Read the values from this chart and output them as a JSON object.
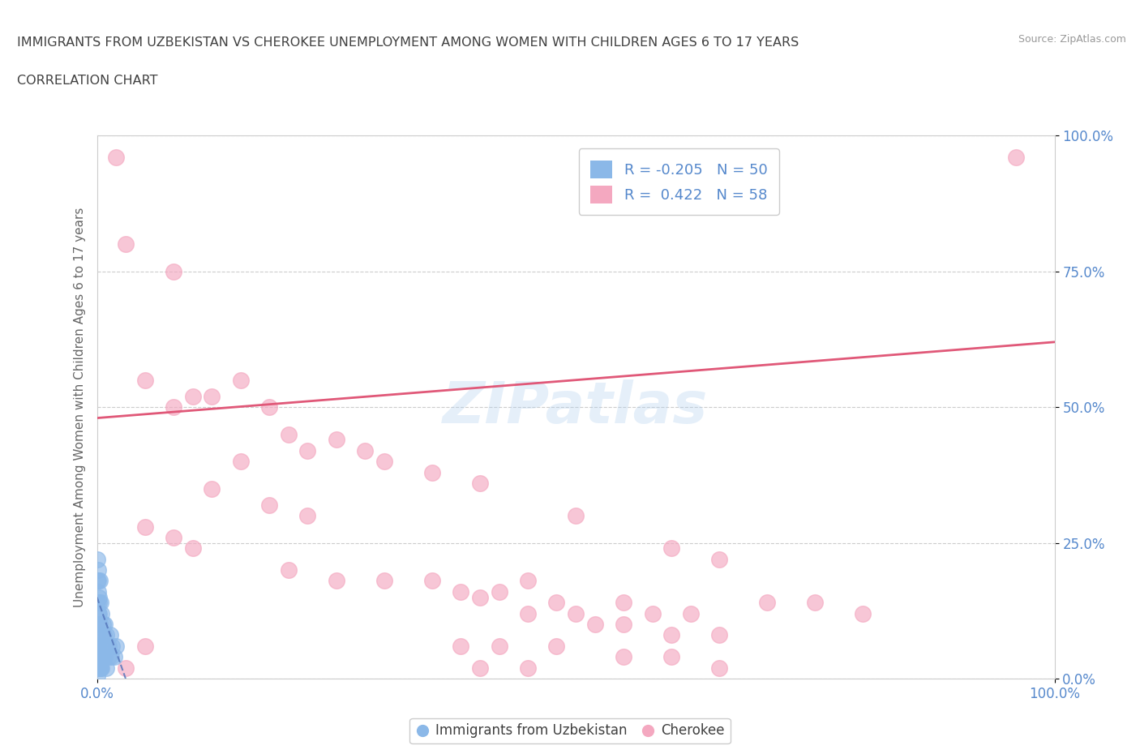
{
  "title_line1": "IMMIGRANTS FROM UZBEKISTAN VS CHEROKEE UNEMPLOYMENT AMONG WOMEN WITH CHILDREN AGES 6 TO 17 YEARS",
  "title_line2": "CORRELATION CHART",
  "source": "Source: ZipAtlas.com",
  "ylabel": "Unemployment Among Women with Children Ages 6 to 17 years",
  "legend_blue_R": -0.205,
  "legend_blue_N": 50,
  "legend_pink_R": 0.422,
  "legend_pink_N": 58,
  "blue_color": "#8BB8E8",
  "pink_color": "#F4A8C0",
  "blue_line_color": "#5577BB",
  "pink_line_color": "#E05878",
  "blue_scatter": [
    [
      0.05,
      18.0
    ],
    [
      0.05,
      22.0
    ],
    [
      0.08,
      14.0
    ],
    [
      0.1,
      18.0
    ],
    [
      0.1,
      12.0
    ],
    [
      0.15,
      16.0
    ],
    [
      0.15,
      20.0
    ],
    [
      0.2,
      14.0
    ],
    [
      0.2,
      10.0
    ],
    [
      0.25,
      15.0
    ],
    [
      0.25,
      12.0
    ],
    [
      0.3,
      18.0
    ],
    [
      0.3,
      10.0
    ],
    [
      0.4,
      14.0
    ],
    [
      0.4,
      8.0
    ],
    [
      0.5,
      12.0
    ],
    [
      0.5,
      6.0
    ],
    [
      0.6,
      10.0
    ],
    [
      0.6,
      4.0
    ],
    [
      0.7,
      8.0
    ],
    [
      0.8,
      10.0
    ],
    [
      0.8,
      4.0
    ],
    [
      0.9,
      6.0
    ],
    [
      1.0,
      8.0
    ],
    [
      1.0,
      2.0
    ],
    [
      1.2,
      6.0
    ],
    [
      1.2,
      4.0
    ],
    [
      1.4,
      8.0
    ],
    [
      1.5,
      4.0
    ],
    [
      1.6,
      6.0
    ],
    [
      1.8,
      4.0
    ],
    [
      2.0,
      6.0
    ],
    [
      0.05,
      4.0
    ],
    [
      0.05,
      6.0
    ],
    [
      0.05,
      2.0
    ],
    [
      0.05,
      8.0
    ],
    [
      0.05,
      0.5
    ],
    [
      0.08,
      2.0
    ],
    [
      0.08,
      4.0
    ],
    [
      0.08,
      6.0
    ],
    [
      0.1,
      2.0
    ],
    [
      0.1,
      4.0
    ],
    [
      0.15,
      2.0
    ],
    [
      0.15,
      6.0
    ],
    [
      0.2,
      4.0
    ],
    [
      0.2,
      2.0
    ],
    [
      0.3,
      4.0
    ],
    [
      0.3,
      2.0
    ],
    [
      0.4,
      2.0
    ],
    [
      0.5,
      2.0
    ]
  ],
  "pink_scatter": [
    [
      2.0,
      96.0
    ],
    [
      96.0,
      96.0
    ],
    [
      3.0,
      80.0
    ],
    [
      8.0,
      75.0
    ],
    [
      5.0,
      55.0
    ],
    [
      10.0,
      52.0
    ],
    [
      12.0,
      52.0
    ],
    [
      15.0,
      55.0
    ],
    [
      8.0,
      50.0
    ],
    [
      18.0,
      50.0
    ],
    [
      20.0,
      45.0
    ],
    [
      22.0,
      42.0
    ],
    [
      25.0,
      44.0
    ],
    [
      28.0,
      42.0
    ],
    [
      15.0,
      40.0
    ],
    [
      30.0,
      40.0
    ],
    [
      35.0,
      38.0
    ],
    [
      40.0,
      36.0
    ],
    [
      12.0,
      35.0
    ],
    [
      18.0,
      32.0
    ],
    [
      22.0,
      30.0
    ],
    [
      50.0,
      30.0
    ],
    [
      5.0,
      28.0
    ],
    [
      8.0,
      26.0
    ],
    [
      10.0,
      24.0
    ],
    [
      60.0,
      24.0
    ],
    [
      65.0,
      22.0
    ],
    [
      20.0,
      20.0
    ],
    [
      25.0,
      18.0
    ],
    [
      30.0,
      18.0
    ],
    [
      35.0,
      18.0
    ],
    [
      45.0,
      18.0
    ],
    [
      38.0,
      16.0
    ],
    [
      42.0,
      16.0
    ],
    [
      40.0,
      15.0
    ],
    [
      48.0,
      14.0
    ],
    [
      55.0,
      14.0
    ],
    [
      70.0,
      14.0
    ],
    [
      75.0,
      14.0
    ],
    [
      45.0,
      12.0
    ],
    [
      50.0,
      12.0
    ],
    [
      58.0,
      12.0
    ],
    [
      62.0,
      12.0
    ],
    [
      80.0,
      12.0
    ],
    [
      52.0,
      10.0
    ],
    [
      55.0,
      10.0
    ],
    [
      60.0,
      8.0
    ],
    [
      65.0,
      8.0
    ],
    [
      5.0,
      6.0
    ],
    [
      38.0,
      6.0
    ],
    [
      42.0,
      6.0
    ],
    [
      48.0,
      6.0
    ],
    [
      55.0,
      4.0
    ],
    [
      60.0,
      4.0
    ],
    [
      65.0,
      2.0
    ],
    [
      3.0,
      2.0
    ],
    [
      40.0,
      2.0
    ],
    [
      45.0,
      2.0
    ]
  ],
  "xlim": [
    0,
    100
  ],
  "ylim": [
    0,
    100
  ],
  "ytick_values": [
    0,
    25,
    50,
    75,
    100
  ],
  "ytick_labels": [
    "0.0%",
    "25.0%",
    "50.0%",
    "75.0%",
    "100.0%"
  ],
  "grid_color": "#CCCCCC",
  "bg_color": "#FFFFFF",
  "title_color": "#404040",
  "axis_label_color": "#666666",
  "tick_color": "#5588CC",
  "legend_label_blue": "Immigrants from Uzbekistan",
  "legend_label_pink": "Cherokee",
  "pink_line_y0": 48.0,
  "pink_line_y100": 62.0,
  "blue_line_y0": 15.0,
  "blue_line_y100": 0.0
}
